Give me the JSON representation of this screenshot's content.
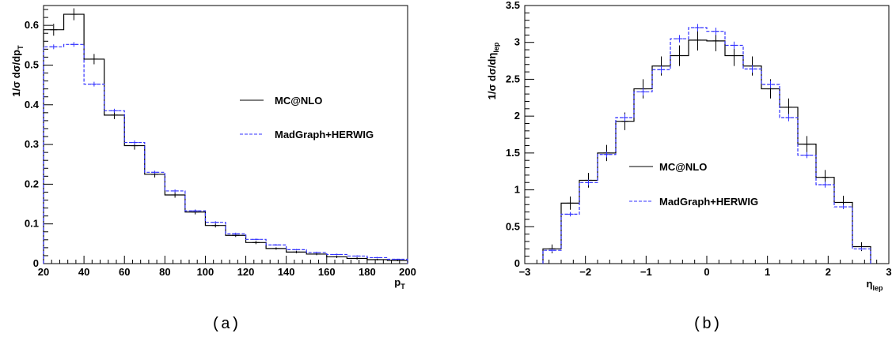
{
  "chart_data": [
    {
      "type": "line",
      "panel": "(a)",
      "title": "",
      "xlabel": "p",
      "xlabel_sub": "T",
      "ylabel": "1/σ dσ/dp",
      "ylabel_sub": "T",
      "xlim": [
        20,
        200
      ],
      "ylim": [
        0,
        0.65
      ],
      "xticks": [
        20,
        40,
        60,
        80,
        100,
        120,
        140,
        160,
        180,
        200
      ],
      "yticks": [
        0,
        0.1,
        0.2,
        0.3,
        0.4,
        0.5,
        0.6
      ],
      "bin_edges": [
        20,
        30,
        40,
        50,
        60,
        70,
        80,
        90,
        100,
        110,
        120,
        130,
        140,
        150,
        160,
        170,
        180,
        190,
        200
      ],
      "series": [
        {
          "name": "MC@NLO",
          "color": "#000000",
          "dash": "solid",
          "values": [
            0.589,
            0.628,
            0.515,
            0.374,
            0.297,
            0.225,
            0.173,
            0.13,
            0.096,
            0.071,
            0.053,
            0.038,
            0.029,
            0.024,
            0.017,
            0.013,
            0.01,
            0.008
          ],
          "errors": [
            0.015,
            0.015,
            0.013,
            0.01,
            0.01,
            0.008,
            0.007,
            0.006,
            0.005,
            0.004,
            0.004,
            0.003,
            0.003,
            0.003,
            0.003,
            0.003,
            0.002,
            0.002
          ]
        },
        {
          "name": "MadGraph+HERWIG",
          "color": "#3333ff",
          "dash": "dashed",
          "values": [
            0.546,
            0.552,
            0.452,
            0.385,
            0.305,
            0.23,
            0.183,
            0.133,
            0.104,
            0.075,
            0.061,
            0.047,
            0.035,
            0.028,
            0.023,
            0.019,
            0.015,
            0.011
          ],
          "errors": [
            0.006,
            0.006,
            0.006,
            0.005,
            0.005,
            0.004,
            0.004,
            0.003,
            0.003,
            0.003,
            0.002,
            0.002,
            0.002,
            0.002,
            0.002,
            0.002,
            0.002,
            0.001
          ]
        }
      ],
      "legend": {
        "position": "center-right",
        "entries": [
          "MC@NLO",
          "MadGraph+HERWIG"
        ]
      }
    },
    {
      "type": "line",
      "panel": "(b)",
      "title": "",
      "xlabel": "η",
      "xlabel_sub": "lep",
      "ylabel": "1/σ dσ/dη",
      "ylabel_sub": "lep",
      "xlim": [
        -3,
        3
      ],
      "ylim": [
        0,
        3.5
      ],
      "xticks": [
        -3,
        -2,
        -1,
        0,
        1,
        2,
        3
      ],
      "yticks": [
        0,
        0.5,
        1,
        1.5,
        2,
        2.5,
        3,
        3.5
      ],
      "bin_edges": [
        -2.7,
        -2.4,
        -2.1,
        -1.8,
        -1.5,
        -1.2,
        -0.9,
        -0.6,
        -0.3,
        0,
        0.3,
        0.6,
        0.9,
        1.2,
        1.5,
        1.8,
        2.1,
        2.4,
        2.7
      ],
      "series": [
        {
          "name": "MC@NLO",
          "color": "#000000",
          "dash": "solid",
          "values": [
            0.2,
            0.82,
            1.13,
            1.5,
            1.93,
            2.37,
            2.68,
            2.82,
            3.03,
            3.02,
            2.82,
            2.68,
            2.37,
            2.12,
            1.62,
            1.17,
            0.83,
            0.23
          ],
          "errors": [
            0.06,
            0.09,
            0.1,
            0.11,
            0.12,
            0.13,
            0.13,
            0.14,
            0.14,
            0.14,
            0.14,
            0.13,
            0.13,
            0.12,
            0.11,
            0.1,
            0.09,
            0.06
          ]
        },
        {
          "name": "MadGraph+HERWIG",
          "color": "#3333ff",
          "dash": "dashed",
          "values": [
            0.18,
            0.67,
            1.1,
            1.48,
            1.98,
            2.33,
            2.63,
            3.05,
            3.2,
            3.15,
            2.96,
            2.64,
            2.43,
            1.98,
            1.47,
            1.07,
            0.77,
            0.2
          ],
          "errors": [
            0.02,
            0.03,
            0.04,
            0.04,
            0.05,
            0.05,
            0.05,
            0.05,
            0.05,
            0.05,
            0.05,
            0.05,
            0.05,
            0.05,
            0.04,
            0.04,
            0.03,
            0.02
          ]
        }
      ],
      "legend": {
        "position": "center-left",
        "entries": [
          "MC@NLO",
          "MadGraph+HERWIG"
        ]
      }
    }
  ]
}
